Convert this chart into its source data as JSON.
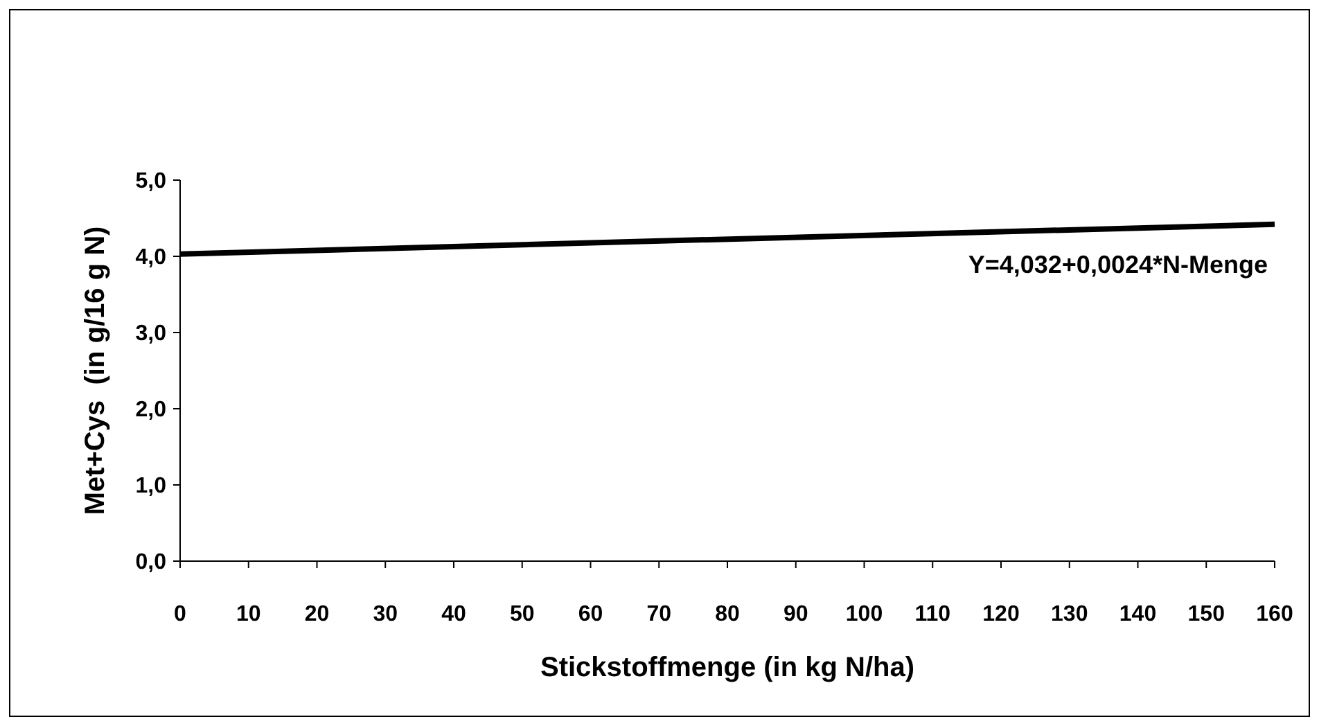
{
  "chart_data": {
    "type": "line",
    "xlabel": "Stickstoffmenge (in kg N/ha)",
    "ylabel": "Met+Cys  (in g/16 g N)",
    "x": [
      0,
      160
    ],
    "series": [
      {
        "color": "#000000",
        "values": [
          4.03,
          4.42
        ]
      }
    ],
    "xlim": [
      0,
      160
    ],
    "xticks": [
      0,
      10,
      20,
      30,
      40,
      50,
      60,
      70,
      80,
      90,
      100,
      110,
      120,
      130,
      140,
      150,
      160
    ],
    "ylim": [
      0,
      5
    ],
    "yticks": [
      {
        "value": 0,
        "label": "0,0"
      },
      {
        "value": 1,
        "label": "1,0"
      },
      {
        "value": 2,
        "label": "2,0"
      },
      {
        "value": 3,
        "label": "3,0"
      },
      {
        "value": 4,
        "label": "4,0"
      },
      {
        "value": 5,
        "label": "5,0"
      }
    ],
    "grid": false,
    "marker": "none",
    "line_style": "solid",
    "annotations": [
      "Y=4,032+0,0024*N-Menge"
    ]
  }
}
